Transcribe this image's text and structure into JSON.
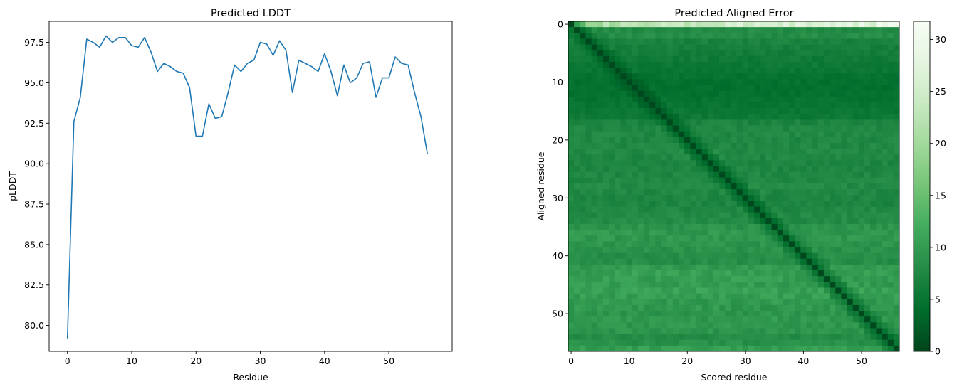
{
  "chart_data": [
    {
      "type": "line",
      "title": "Predicted LDDT",
      "xlabel": "Residue",
      "ylabel": "pLDDT",
      "xlim": [
        -2.85,
        59.85
      ],
      "ylim": [
        78.4,
        98.8
      ],
      "xticks": [
        0,
        10,
        20,
        30,
        40,
        50
      ],
      "yticks": [
        80.0,
        82.5,
        85.0,
        87.5,
        90.0,
        92.5,
        95.0,
        97.5
      ],
      "ytick_labels": [
        "80.0",
        "82.5",
        "85.0",
        "87.5",
        "90.0",
        "92.5",
        "95.0",
        "97.5"
      ],
      "grid": false,
      "color": "#1f77b4",
      "x": [
        0,
        1,
        2,
        3,
        4,
        5,
        6,
        7,
        8,
        9,
        10,
        11,
        12,
        13,
        14,
        15,
        16,
        17,
        18,
        19,
        20,
        21,
        22,
        23,
        24,
        25,
        26,
        27,
        28,
        29,
        30,
        31,
        32,
        33,
        34,
        35,
        36,
        37,
        38,
        39,
        40,
        41,
        42,
        43,
        44,
        45,
        46,
        47,
        48,
        49,
        50,
        51,
        52,
        53,
        54,
        55,
        56
      ],
      "y": [
        79.2,
        92.6,
        94.1,
        97.7,
        97.5,
        97.2,
        97.9,
        97.5,
        97.8,
        97.8,
        97.3,
        97.2,
        97.8,
        96.9,
        95.7,
        96.2,
        96.0,
        95.7,
        95.6,
        94.7,
        91.7,
        91.7,
        93.7,
        92.8,
        92.9,
        94.4,
        96.1,
        95.7,
        96.2,
        96.4,
        97.5,
        97.4,
        96.7,
        97.6,
        97.0,
        94.4,
        96.4,
        96.2,
        96.0,
        95.7,
        96.8,
        95.7,
        94.2,
        96.1,
        95.0,
        95.3,
        96.2,
        96.3,
        94.1,
        95.3,
        95.3,
        96.6,
        96.2,
        96.1,
        94.4,
        92.9,
        90.6
      ]
    },
    {
      "type": "heatmap",
      "title": "Predicted Aligned Error",
      "xlabel": "Scored residue",
      "ylabel": "Aligned residue",
      "n_residues": 57,
      "xticks": [
        0,
        10,
        20,
        30,
        40,
        50
      ],
      "yticks": [
        0,
        10,
        20,
        30,
        40,
        50
      ],
      "colormap": "Greens_r",
      "colormap_stops": [
        "#00441b",
        "#006d2c",
        "#238b45",
        "#41ab5d",
        "#74c476",
        "#a1d99b",
        "#c7e9c0",
        "#e5f5e0",
        "#f7fcf5"
      ],
      "vmin": 0,
      "vmax": 31.75,
      "colorbar_ticks": [
        0,
        5,
        10,
        15,
        20,
        25,
        30
      ],
      "diagonal_value": 0.4,
      "aligned_residue_mean_error": [
        26,
        8,
        8.2,
        6.8,
        6.5,
        6.2,
        5.8,
        5.5,
        5.2,
        4.8,
        4.5,
        4.4,
        4.5,
        4.8,
        5,
        5.3,
        5.5,
        7,
        7.4,
        7.6,
        7.5,
        7.6,
        7.8,
        7.5,
        7.2,
        7.3,
        7.4,
        7.6,
        7.8,
        7.5,
        7.3,
        7.2,
        7.5,
        7.8,
        8,
        9,
        9.6,
        9.4,
        9.2,
        8.8,
        8.4,
        8.2,
        9.8,
        10.4,
        10.2,
        10,
        10.6,
        10.2,
        9.8,
        9.6,
        9.2,
        9.6,
        9.4,
        9.2,
        8,
        8.6,
        10.2
      ]
    }
  ]
}
